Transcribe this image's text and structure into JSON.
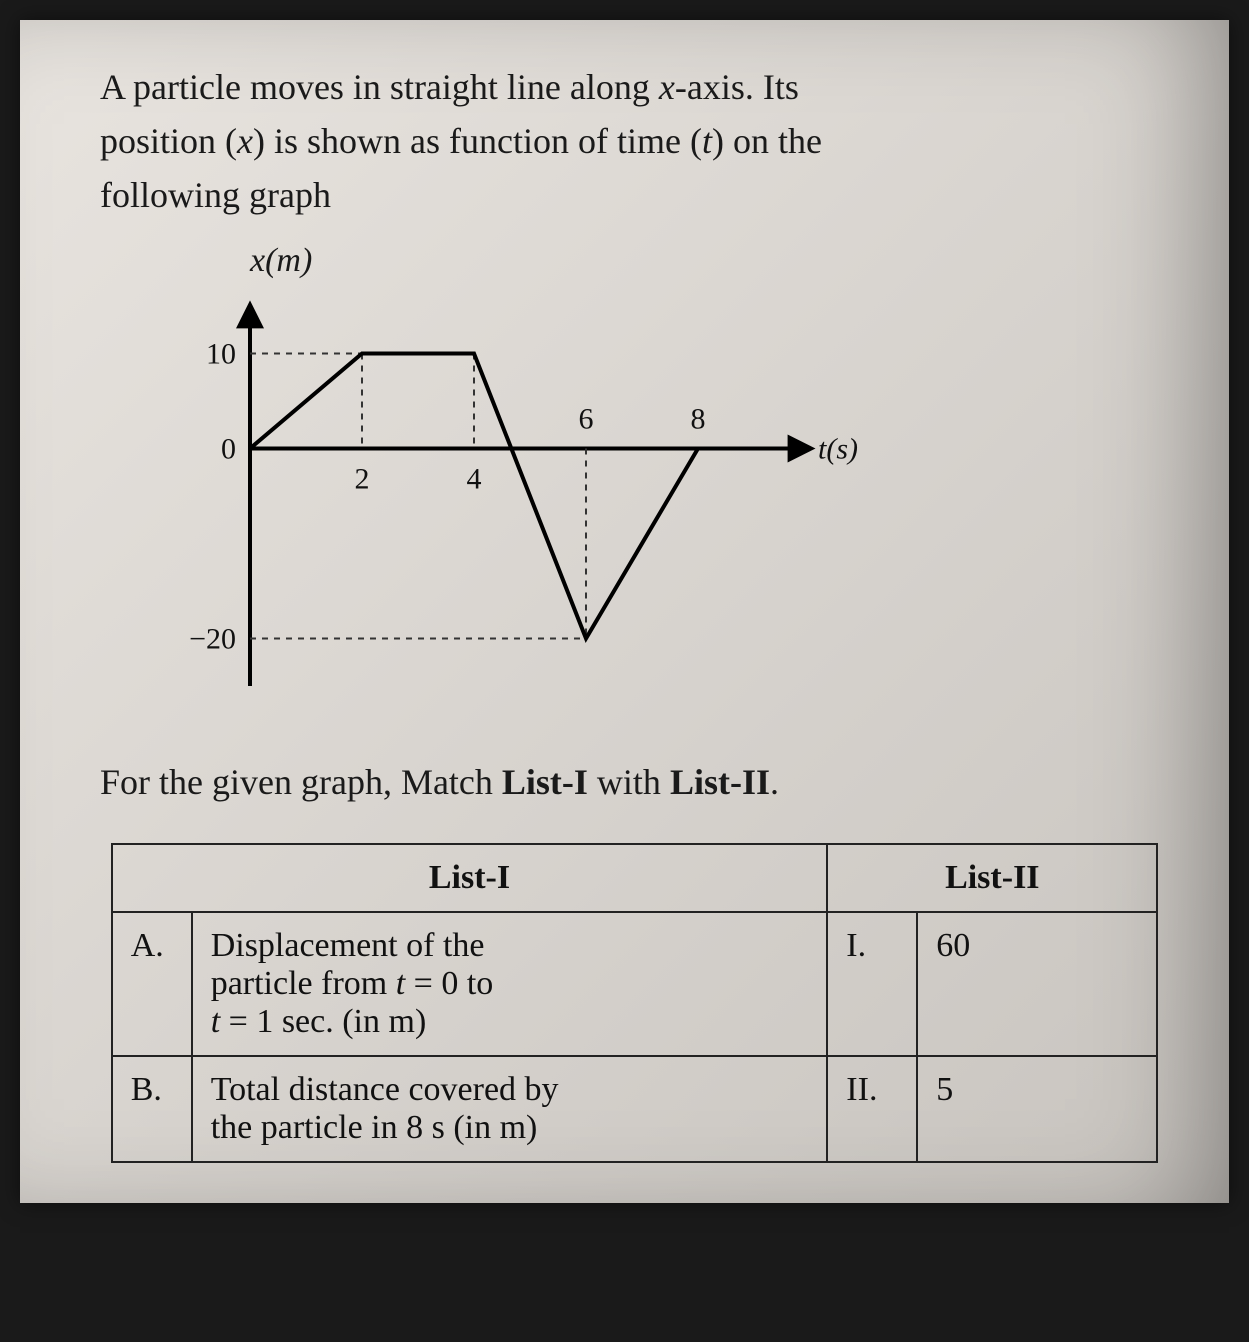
{
  "problem": {
    "line1": "A particle moves in straight line along ",
    "xaxis": "x",
    "line1b": "-axis. Its",
    "line2a": "position (",
    "posvar": "x",
    "line2b": ") is shown as function of time (",
    "timevar": "t",
    "line2c": ") on the",
    "line3": "following graph"
  },
  "chart": {
    "type": "line",
    "ylabel": "x(m)",
    "xlabel": "t(s)",
    "xlim": [
      0,
      10
    ],
    "ylim": [
      -25,
      15
    ],
    "xticks": [
      2,
      4,
      6,
      8
    ],
    "yticks": [
      {
        "v": 10,
        "label": "10"
      },
      {
        "v": 0,
        "label": "0"
      },
      {
        "v": -20,
        "label": "−20"
      }
    ],
    "points": [
      {
        "t": 0,
        "x": 0
      },
      {
        "t": 2,
        "x": 10
      },
      {
        "t": 4,
        "x": 10
      },
      {
        "t": 6,
        "x": -20
      },
      {
        "t": 8,
        "x": 0
      }
    ],
    "line_color": "#000000",
    "line_width": 4,
    "grid_dash": "6,6",
    "grid_color": "#333333",
    "background_color": "transparent",
    "font_size": 30
  },
  "match_instruction_a": "For the given graph, Match ",
  "match_instruction_b": "List-I",
  "match_instruction_c": " with ",
  "match_instruction_d": "List-II",
  "match_instruction_e": ".",
  "headers": {
    "left": "List-I",
    "right": "List-II"
  },
  "rows": [
    {
      "letter": "A.",
      "desc_l1": "Displacement of the",
      "desc_l2": "particle from t = 0 to",
      "desc_l3": "t = 1 sec. (in m)",
      "roman": "I.",
      "value": "60"
    },
    {
      "letter": "B.",
      "desc_l1": "Total distance covered by",
      "desc_l2": "the particle in 8 s (in m)",
      "desc_l3": "",
      "roman": "II.",
      "value": "5"
    }
  ]
}
